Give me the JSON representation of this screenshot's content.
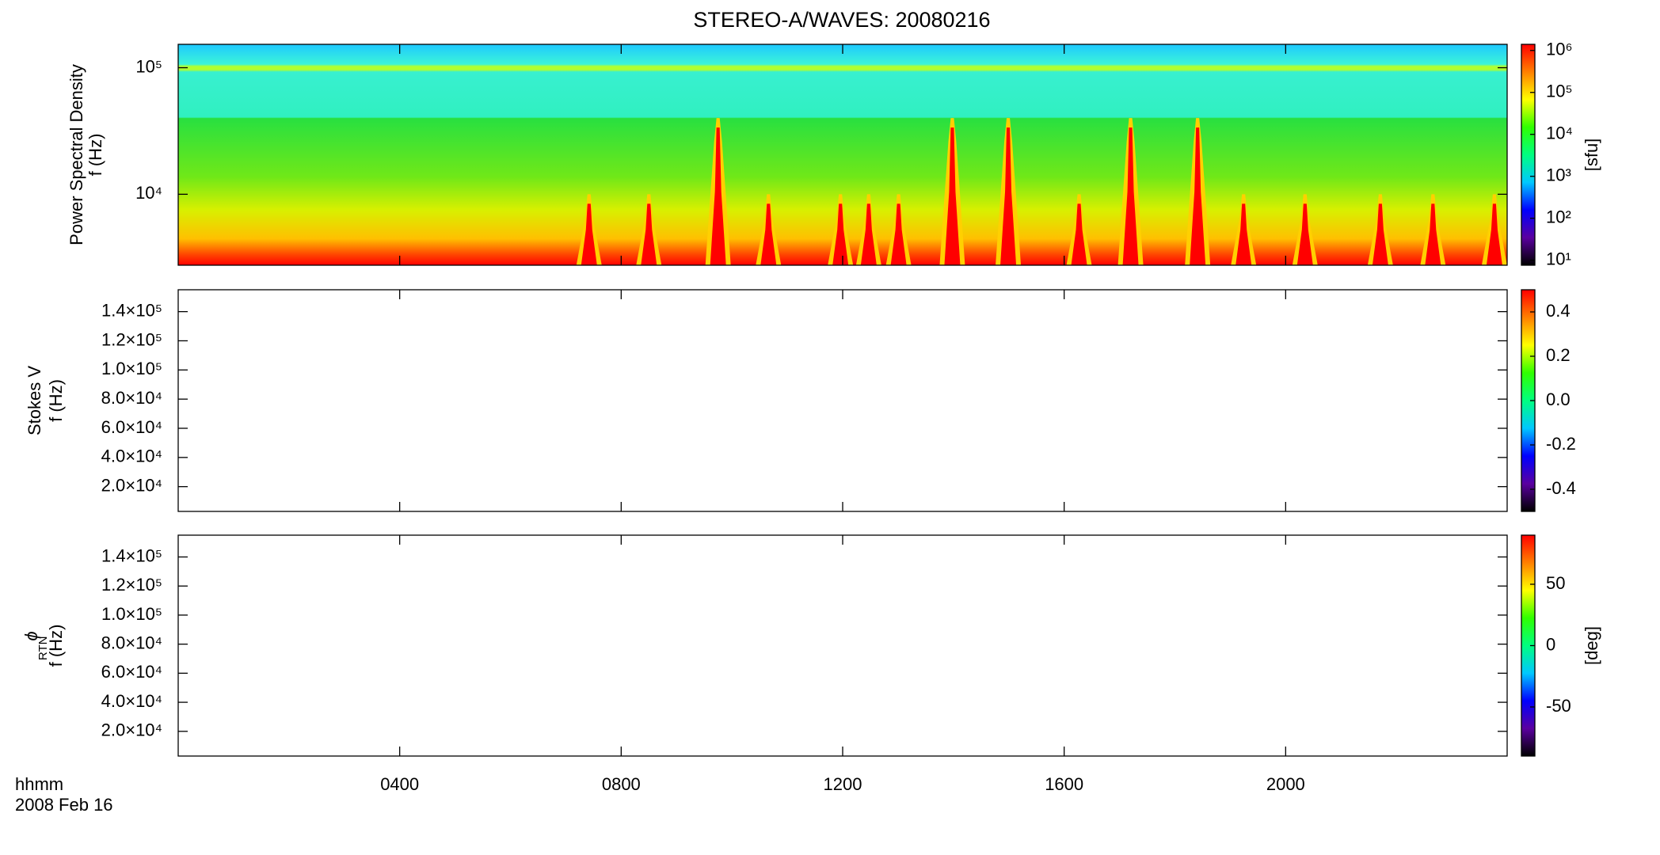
{
  "figure": {
    "title": "STEREO-A/WAVES: 20080216",
    "time_label": "hhmm",
    "date_label": "2008 Feb 16",
    "xlim": [
      0,
      24
    ],
    "xticks": [
      {
        "value": 4,
        "label": "0400"
      },
      {
        "value": 8,
        "label": "0800"
      },
      {
        "value": 12,
        "label": "1200"
      },
      {
        "value": 16,
        "label": "1600"
      },
      {
        "value": 20,
        "label": "2000"
      }
    ],
    "colormap": [
      "#000000",
      "#5a00a0",
      "#0000ff",
      "#00c8ff",
      "#00ff80",
      "#30ff00",
      "#ffff00",
      "#ff8000",
      "#ff0000"
    ]
  },
  "chart_data": [
    {
      "type": "spectrogram",
      "ylabel": [
        "Power Spectral Density",
        "f (Hz)"
      ],
      "ylog": true,
      "ylim": [
        2750,
        153000
      ],
      "yticks": [
        {
          "value": 10000,
          "label": "10⁴"
        },
        {
          "value": 100000,
          "label": "10⁵"
        }
      ],
      "x": [
        7.42,
        8.5,
        9.75,
        10.66,
        11.96,
        12.47,
        13.01,
        13.98,
        14.99,
        16.27,
        17.2,
        18.41,
        19.24,
        20.35,
        21.71,
        22.66,
        23.77
      ],
      "values": [
        10000,
        10000,
        40000,
        10000,
        10000,
        10000,
        10000,
        40000,
        40000,
        10000,
        40000,
        40000,
        10000,
        10000,
        10000,
        10000,
        10000
      ],
      "clog": true,
      "clim": [
        7.6,
        1400000
      ],
      "cticks": [
        {
          "value": 10,
          "label": "10¹"
        },
        {
          "value": 100,
          "label": "10²"
        },
        {
          "value": 1000,
          "label": "10³"
        },
        {
          "value": 10000,
          "label": "10⁴"
        },
        {
          "value": 100000,
          "label": "10⁵"
        },
        {
          "value": 1000000,
          "label": "10⁶"
        }
      ],
      "clabel": "[sfu]"
    },
    {
      "type": "heatmap",
      "ylabel": [
        "Stokes V",
        "f (Hz)"
      ],
      "ylog": false,
      "ylim": [
        3000,
        155000
      ],
      "yticks": [
        {
          "value": 20000,
          "label": "2.0×10⁴"
        },
        {
          "value": 40000,
          "label": "4.0×10⁴"
        },
        {
          "value": 60000,
          "label": "6.0×10⁴"
        },
        {
          "value": 80000,
          "label": "8.0×10⁴"
        },
        {
          "value": 100000,
          "label": "1.0×10⁵"
        },
        {
          "value": 120000,
          "label": "1.2×10⁵"
        },
        {
          "value": 140000,
          "label": "1.4×10⁵"
        }
      ],
      "clog": false,
      "clim": [
        -0.5,
        0.5
      ],
      "cticks": [
        -0.4,
        -0.2,
        {
          "value": 0,
          "label": "0.0"
        },
        0.2,
        0.4
      ]
    },
    {
      "type": "heatmap",
      "ylabel": [
        "ϕ",
        "RTN",
        "f (Hz)"
      ],
      "ylog": false,
      "ylim": [
        3000,
        155000
      ],
      "yticks": [
        {
          "value": 20000,
          "label": "2.0×10⁴"
        },
        {
          "value": 40000,
          "label": "4.0×10⁴"
        },
        {
          "value": 60000,
          "label": "6.0×10⁴"
        },
        {
          "value": 80000,
          "label": "8.0×10⁴"
        },
        {
          "value": 100000,
          "label": "1.0×10⁵"
        },
        {
          "value": 120000,
          "label": "1.2×10⁵"
        },
        {
          "value": 140000,
          "label": "1.4×10⁵"
        }
      ],
      "clog": false,
      "clim": [
        -90,
        90
      ],
      "cticks": [
        -50,
        0,
        50
      ],
      "clabel": "[deg]"
    }
  ]
}
